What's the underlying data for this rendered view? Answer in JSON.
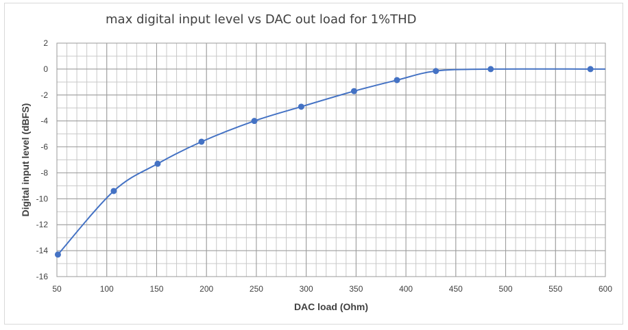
{
  "chart_data": {
    "type": "scatter",
    "title": "max digital input level vs DAC out load for 1%THD",
    "xlabel": "DAC load (Ohm)",
    "ylabel": "Digital input level (dBFS)",
    "xlim": [
      50,
      600
    ],
    "ylim": [
      -16,
      2
    ],
    "x_ticks": [
      50,
      100,
      150,
      200,
      250,
      300,
      350,
      400,
      450,
      500,
      550,
      600
    ],
    "y_ticks": [
      2,
      0,
      -2,
      -4,
      -6,
      -8,
      -10,
      -12,
      -14,
      -16
    ],
    "x_tick_labels": [
      "50",
      "100",
      "150",
      "200",
      "250",
      "300",
      "350",
      "400",
      "450",
      "500",
      "550",
      "600"
    ],
    "y_tick_labels": [
      "2",
      "0",
      "-2",
      "-4",
      "-6",
      "-8",
      "-10",
      "-12",
      "-14",
      "-16"
    ],
    "grid": true,
    "legend": false,
    "smooth_line": true,
    "series": [
      {
        "color": "#4472c4",
        "x": [
          51,
          107,
          151,
          195,
          248,
          295,
          348,
          391,
          430,
          485,
          585
        ],
        "y": [
          -14.3,
          -9.4,
          -7.3,
          -5.6,
          -4.0,
          -2.9,
          -1.7,
          -0.85,
          -0.15,
          0.0,
          0.0
        ],
        "line_extends_to_x": 600,
        "line_end_y": 0.0
      }
    ]
  }
}
